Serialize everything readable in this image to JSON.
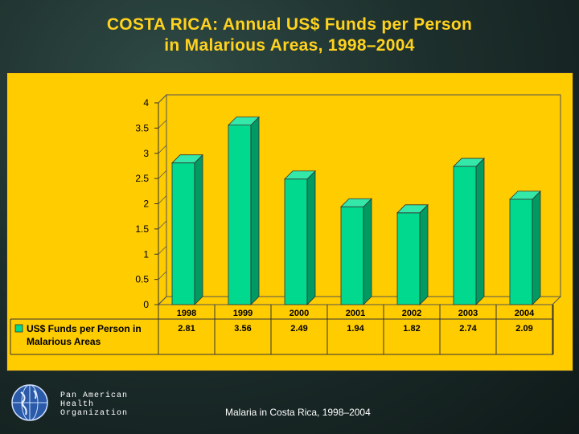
{
  "title": {
    "line1": "COSTA RICA: Annual US$ Funds per Person",
    "line2": "in Malarious Areas, 1998–2004"
  },
  "chart_data": {
    "type": "bar",
    "categories": [
      "1998",
      "1999",
      "2000",
      "2001",
      "2002",
      "2003",
      "2004"
    ],
    "series": [
      {
        "name": "US$ Funds per Person in Malarious Areas",
        "legend_lines": [
          "US$ Funds per Person in",
          "Malarious Areas"
        ],
        "values": [
          2.81,
          3.56,
          2.49,
          1.94,
          1.82,
          2.74,
          2.09
        ],
        "value_labels": [
          "2.81",
          "3.56",
          "2.49",
          "1.94",
          "1.82",
          "2.74",
          "2.09"
        ]
      }
    ],
    "y_ticks": [
      "0",
      "0.5",
      "1",
      "1.5",
      "2",
      "2.5",
      "3",
      "3.5",
      "4"
    ],
    "ylim": [
      0,
      4
    ],
    "data_table": true,
    "colors": {
      "bar_face": "#00d98e",
      "bar_side": "#009a62",
      "bar_top": "#33e8a8",
      "background": "#ffcc00",
      "title": "#ffd21e"
    }
  },
  "footer": {
    "org_lines": [
      "Pan American",
      "Health",
      "Organization"
    ],
    "caption": "Malaria in Costa Rica, 1998–2004",
    "logo_icon": "globe-icon"
  }
}
